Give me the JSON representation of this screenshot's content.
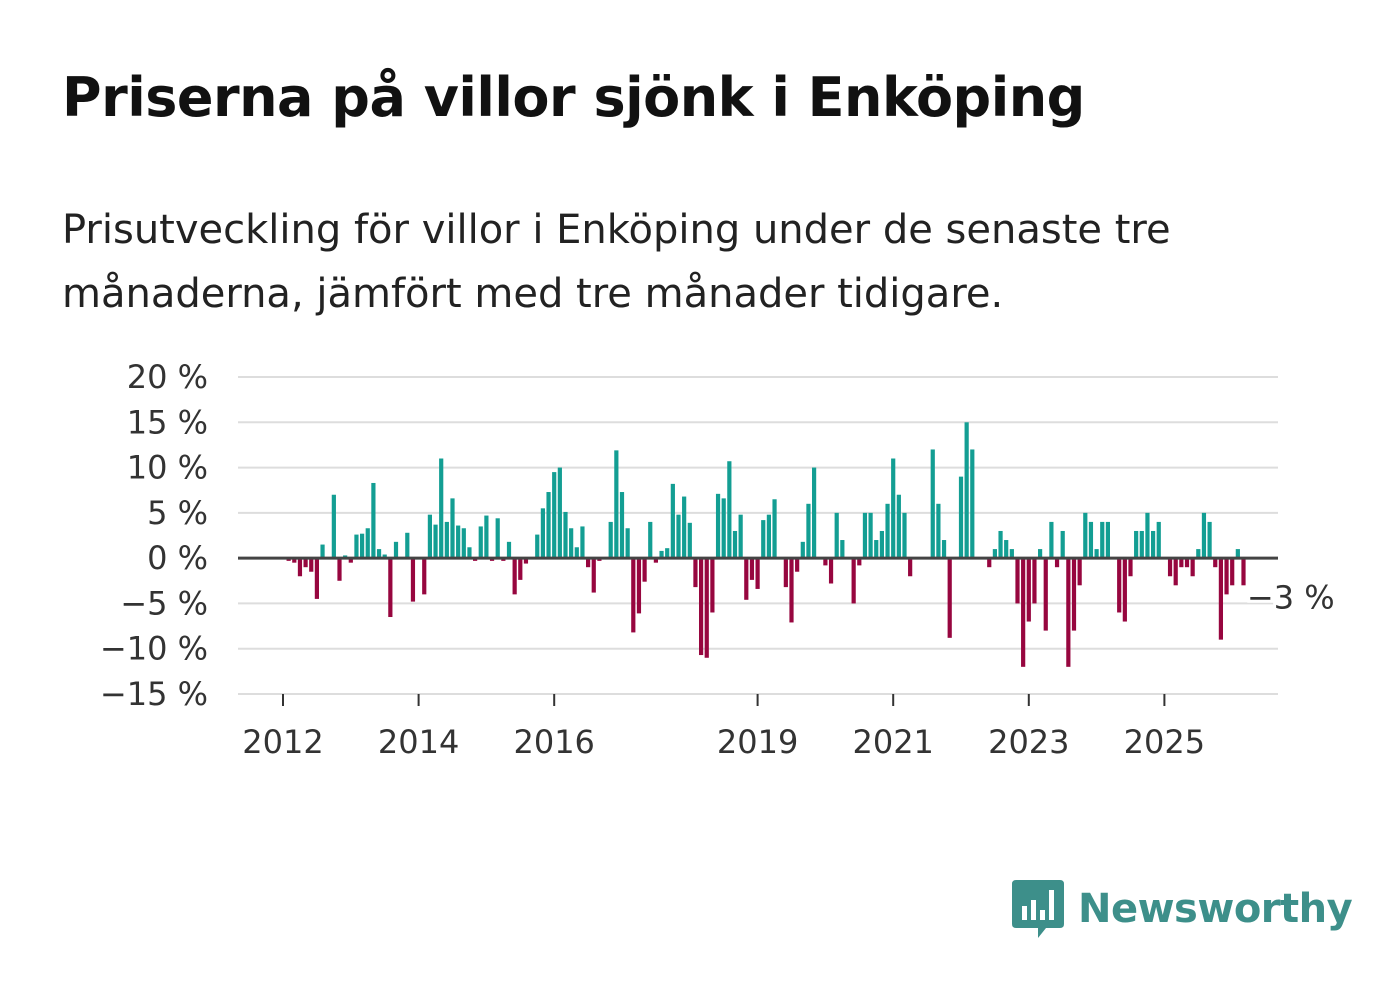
{
  "title": "Priserna på villor sjönk i Enköping",
  "subtitle": "Prisutveckling för villor i Enköping under de senaste tre månaderna, jämfört med tre månader tidigare.",
  "brand": "Newsworthy",
  "colors": {
    "positive": "#139e93",
    "negative": "#97063f",
    "grid": "#dddddd",
    "zero": "#444444"
  },
  "chart_data": {
    "type": "bar",
    "title": "Priserna på villor sjönk i Enköping",
    "ylabel": "",
    "xlabel": "",
    "ylim": [
      -15,
      20
    ],
    "y_ticks": [
      20,
      15,
      10,
      5,
      0,
      -5,
      -10,
      -15
    ],
    "y_tick_labels": [
      "20 %",
      "15 %",
      "10 %",
      "5 %",
      "0 %",
      "−5 %",
      "−10 %",
      "−15 %"
    ],
    "x_ticks": [
      {
        "label": "2012",
        "index": 0
      },
      {
        "label": "2014",
        "index": 24
      },
      {
        "label": "2016",
        "index": 48
      },
      {
        "label": "2019",
        "index": 84
      },
      {
        "label": "2021",
        "index": 108
      },
      {
        "label": "2023",
        "index": 132
      },
      {
        "label": "2025",
        "index": 156
      }
    ],
    "start": "2012-01",
    "values": [
      0,
      -0.3,
      -0.5,
      -2,
      -1,
      -1.5,
      -4.5,
      1.5,
      0,
      7,
      -2.5,
      0.3,
      -0.5,
      2.6,
      2.7,
      3.3,
      8.3,
      1,
      0.4,
      -6.5,
      1.8,
      0,
      2.8,
      -4.8,
      0,
      -4,
      4.8,
      3.7,
      11,
      4,
      6.6,
      3.6,
      3.3,
      1.2,
      -0.3,
      3.5,
      4.7,
      -0.3,
      4.4,
      -0.3,
      1.8,
      -4,
      -2.4,
      -0.6,
      0,
      2.6,
      5.5,
      7.3,
      9.5,
      10,
      5.1,
      3.3,
      1.2,
      3.5,
      -1,
      -3.8,
      -0.3,
      0,
      4,
      11.9,
      7.3,
      3.3,
      -8.2,
      -6.1,
      -2.6,
      4,
      -0.5,
      0.8,
      1.1,
      8.2,
      4.8,
      6.8,
      3.9,
      -3.2,
      -10.7,
      -11,
      -6,
      7.1,
      6.6,
      10.7,
      3,
      4.8,
      -4.6,
      -2.4,
      -3.4,
      4.2,
      4.8,
      6.5,
      0,
      -3.2,
      -7.1,
      -1.5,
      1.8,
      6,
      10,
      0,
      -0.8,
      -2.8,
      5,
      2,
      0,
      -5,
      -0.8,
      5,
      5,
      2,
      3,
      6,
      11,
      7,
      5,
      -2,
      0,
      0,
      0,
      12,
      6,
      2,
      -8.8,
      0,
      9,
      15,
      12,
      0,
      0,
      -1,
      1,
      3,
      2,
      1,
      -5,
      -12,
      -7,
      -5,
      1,
      -8,
      4,
      -1,
      3,
      -12,
      -8,
      -3,
      5,
      4,
      1,
      4,
      4,
      0,
      -6,
      -7,
      -2,
      3,
      3,
      5,
      3,
      4,
      0,
      -2,
      -3,
      -1,
      -1,
      -2,
      1,
      5,
      4,
      -1,
      -9,
      -4,
      -3,
      1,
      -3
    ],
    "annotation": {
      "text": "−3 %",
      "index": 172,
      "value": -3
    }
  }
}
